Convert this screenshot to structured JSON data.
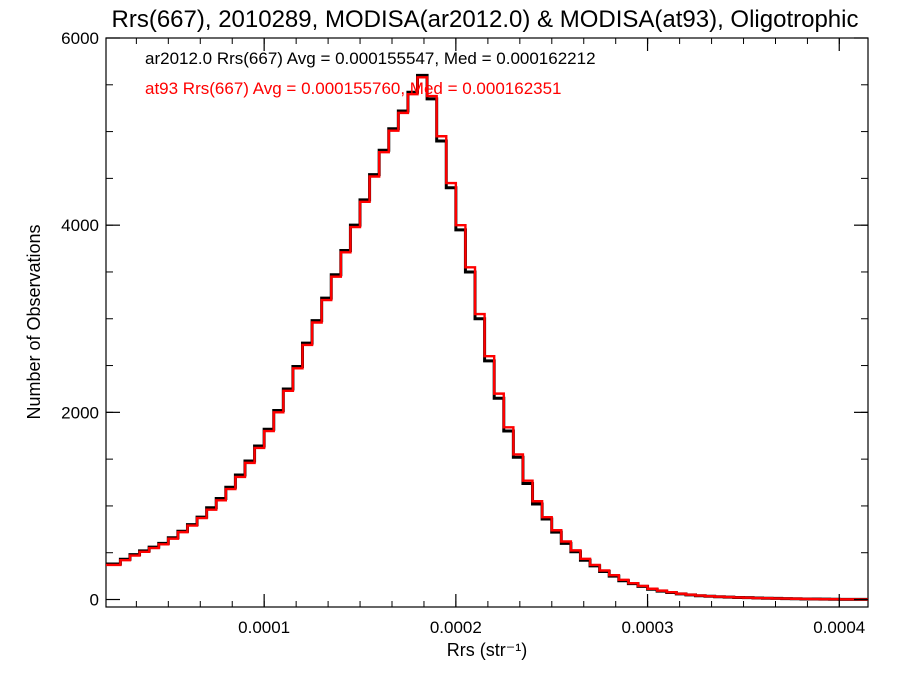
{
  "chart_data": {
    "type": "histogram-step",
    "title": "Rrs(667), 2010289, MODISA(ar2012.0) & MODISA(at93), Oligotrophic",
    "xlabel": "Rrs (str⁻¹)",
    "ylabel": "Number of Observations",
    "xlim": [
      1.75e-05,
      0.000415
    ],
    "ylim": [
      -80,
      6000
    ],
    "xticks": [
      {
        "value": 0.0001,
        "label": "0.0001"
      },
      {
        "value": 0.0002,
        "label": "0.0002"
      },
      {
        "value": 0.0003,
        "label": "0.0003"
      },
      {
        "value": 0.0004,
        "label": "0.0004"
      }
    ],
    "x_minor_step": 1.667e-05,
    "yticks": [
      {
        "value": 0,
        "label": "0"
      },
      {
        "value": 2000,
        "label": "2000"
      },
      {
        "value": 4000,
        "label": "4000"
      },
      {
        "value": 6000,
        "label": "6000"
      }
    ],
    "y_minor_step": 500,
    "grid": false,
    "legend_position": "top-left",
    "series": [
      {
        "name": "ar2012.0 Rrs(667) Avg = 0.000155547, Med = 0.000162212",
        "color": "#000000",
        "x": [
          1.75e-05,
          2.5e-05,
          3e-05,
          3.5e-05,
          4e-05,
          4.5e-05,
          5e-05,
          5.5e-05,
          6e-05,
          6.5e-05,
          7e-05,
          7.5e-05,
          8e-05,
          8.5e-05,
          9e-05,
          9.5e-05,
          0.0001,
          0.000105,
          0.00011,
          0.000115,
          0.00012,
          0.000125,
          0.00013,
          0.000135,
          0.00014,
          0.000145,
          0.00015,
          0.000155,
          0.00016,
          0.000165,
          0.00017,
          0.000175,
          0.00018,
          0.000185,
          0.00019,
          0.000195,
          0.0002,
          0.000205,
          0.00021,
          0.000215,
          0.00022,
          0.000225,
          0.00023,
          0.000235,
          0.00024,
          0.000245,
          0.00025,
          0.000255,
          0.00026,
          0.000265,
          0.00027,
          0.000275,
          0.00028,
          0.000285,
          0.00029,
          0.000295,
          0.0003,
          0.000305,
          0.00031,
          0.000315,
          0.00032,
          0.000325,
          0.00033,
          0.000335,
          0.00034,
          0.000345,
          0.00035,
          0.000355,
          0.00036,
          0.000365,
          0.00037,
          0.000375,
          0.00038,
          0.000385,
          0.00039,
          0.000395,
          0.0004,
          0.000405,
          0.00041,
          0.000415
        ],
        "values": [
          380,
          430,
          480,
          520,
          560,
          600,
          660,
          730,
          800,
          880,
          980,
          1080,
          1200,
          1330,
          1480,
          1640,
          1820,
          2020,
          2250,
          2490,
          2740,
          2980,
          3220,
          3470,
          3730,
          4000,
          4270,
          4540,
          4800,
          5030,
          5220,
          5420,
          5600,
          5350,
          4900,
          4400,
          3950,
          3500,
          3000,
          2550,
          2150,
          1800,
          1520,
          1240,
          1020,
          860,
          720,
          600,
          510,
          420,
          360,
          300,
          250,
          200,
          170,
          140,
          110,
          90,
          75,
          60,
          50,
          40,
          35,
          30,
          25,
          22,
          20,
          16,
          14,
          12,
          10,
          8,
          6,
          5,
          4,
          3,
          2,
          2,
          1,
          1
        ]
      },
      {
        "name": "at93 Rrs(667) Avg = 0.000155760, Med = 0.000162351",
        "color": "#ff0000",
        "x": [
          1.75e-05,
          2.5e-05,
          3e-05,
          3.5e-05,
          4e-05,
          4.5e-05,
          5e-05,
          5.5e-05,
          6e-05,
          6.5e-05,
          7e-05,
          7.5e-05,
          8e-05,
          8.5e-05,
          9e-05,
          9.5e-05,
          0.0001,
          0.000105,
          0.00011,
          0.000115,
          0.00012,
          0.000125,
          0.00013,
          0.000135,
          0.00014,
          0.000145,
          0.00015,
          0.000155,
          0.00016,
          0.000165,
          0.00017,
          0.000175,
          0.00018,
          0.000185,
          0.00019,
          0.000195,
          0.0002,
          0.000205,
          0.00021,
          0.000215,
          0.00022,
          0.000225,
          0.00023,
          0.000235,
          0.00024,
          0.000245,
          0.00025,
          0.000255,
          0.00026,
          0.000265,
          0.00027,
          0.000275,
          0.00028,
          0.000285,
          0.00029,
          0.000295,
          0.0003,
          0.000305,
          0.00031,
          0.000315,
          0.00032,
          0.000325,
          0.00033,
          0.000335,
          0.00034,
          0.000345,
          0.00035,
          0.000355,
          0.00036,
          0.000365,
          0.00037,
          0.000375,
          0.00038,
          0.000385,
          0.00039,
          0.000395,
          0.0004,
          0.000405,
          0.00041,
          0.000415
        ],
        "values": [
          370,
          420,
          470,
          510,
          550,
          590,
          650,
          720,
          790,
          870,
          960,
          1060,
          1180,
          1310,
          1460,
          1620,
          1800,
          2000,
          2230,
          2470,
          2720,
          2960,
          3200,
          3450,
          3710,
          3980,
          4250,
          4520,
          4780,
          5010,
          5200,
          5400,
          5580,
          5380,
          4950,
          4450,
          4000,
          3550,
          3050,
          2600,
          2200,
          1840,
          1550,
          1270,
          1050,
          880,
          740,
          620,
          525,
          435,
          370,
          310,
          260,
          210,
          175,
          145,
          115,
          95,
          78,
          62,
          52,
          42,
          36,
          30,
          26,
          22,
          20,
          16,
          14,
          12,
          10,
          8,
          6,
          5,
          4,
          3,
          2,
          2,
          1,
          1
        ]
      }
    ]
  }
}
